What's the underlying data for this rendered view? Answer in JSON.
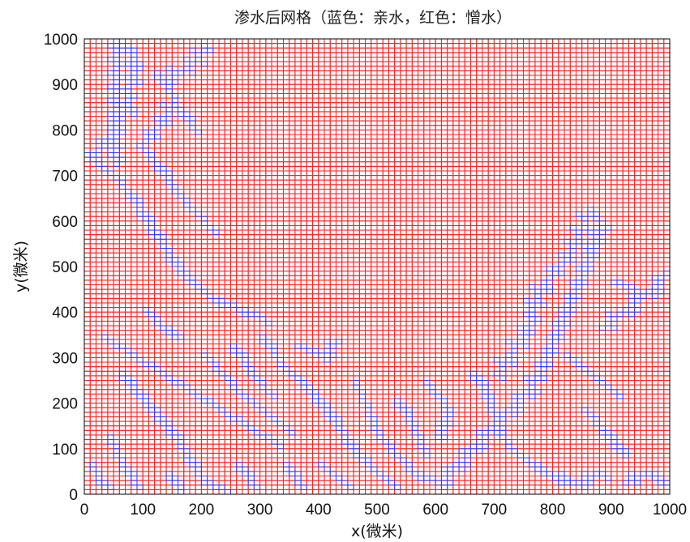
{
  "chart_data": {
    "type": "heatmap",
    "title": "渗水后网格（蓝色：亲水，红色：憎水）",
    "xlabel": "x(微米)",
    "ylabel": "y(微米)",
    "xlim": [
      0,
      1000
    ],
    "ylim": [
      0,
      1000
    ],
    "xticks": [
      0,
      100,
      200,
      300,
      400,
      500,
      600,
      700,
      800,
      900,
      1000
    ],
    "yticks": [
      0,
      100,
      200,
      300,
      400,
      500,
      600,
      700,
      800,
      900,
      1000
    ],
    "grid_cells": 100,
    "cell_size": 10,
    "categories": [
      {
        "name": "亲水",
        "color": "#3333ff"
      },
      {
        "name": "憎水",
        "color": "#ff2222"
      }
    ]
  }
}
